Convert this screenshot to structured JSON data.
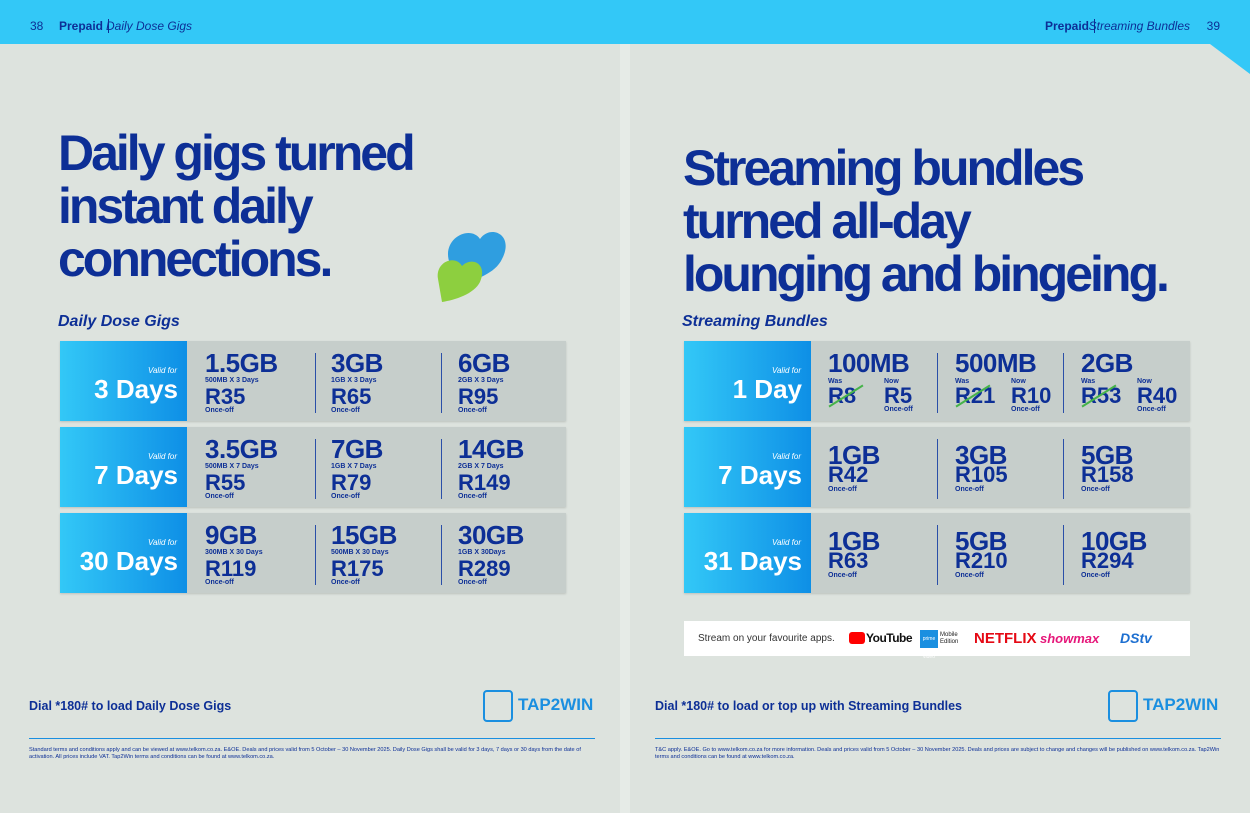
{
  "left_page": {
    "page_number": "38",
    "section": "Prepaid",
    "subsection": "Daily Dose Gigs",
    "headline": [
      "Daily gigs turned",
      "instant daily",
      "connections."
    ],
    "table_title": "Daily Dose Gigs",
    "rows": [
      {
        "valid_label": "Valid for",
        "period": "3 Days",
        "items": [
          {
            "data": "1.5GB",
            "detail": "500MB X 3 Days",
            "price": "R35",
            "note": "Once-off"
          },
          {
            "data": "3GB",
            "detail": "1GB X 3 Days",
            "price": "R65",
            "note": "Once-off"
          },
          {
            "data": "6GB",
            "detail": "2GB X 3 Days",
            "price": "R95",
            "note": "Once-off"
          }
        ]
      },
      {
        "valid_label": "Valid for",
        "period": "7 Days",
        "items": [
          {
            "data": "3.5GB",
            "detail": "500MB X 7 Days",
            "price": "R55",
            "note": "Once-off"
          },
          {
            "data": "7GB",
            "detail": "1GB X 7 Days",
            "price": "R79",
            "note": "Once-off"
          },
          {
            "data": "14GB",
            "detail": "2GB X 7 Days",
            "price": "R149",
            "note": "Once-off"
          }
        ]
      },
      {
        "valid_label": "Valid for",
        "period": "30 Days",
        "items": [
          {
            "data": "9GB",
            "detail": "300MB X 30 Days",
            "price": "R119",
            "note": "Once-off"
          },
          {
            "data": "15GB",
            "detail": "500MB X 30 Days",
            "price": "R175",
            "note": "Once-off"
          },
          {
            "data": "30GB",
            "detail": "1GB X 30Days",
            "price": "R289",
            "note": "Once-off"
          }
        ]
      }
    ],
    "dial": "Dial *180# to load Daily Dose Gigs",
    "logo": "TAP2WIN",
    "terms": "Standard terms and conditions apply and can be viewed at www.telkom.co.za. E&OE. Deals and prices valid from 5 October – 30 November 2025. Daily Dose Gigs shall be valid for 3 days, 7 days or 30 days from the date of activation. All prices include VAT. Tap2Win terms and conditions can be found at www.telkom.co.za."
  },
  "right_page": {
    "page_number": "39",
    "section": "Prepaid",
    "subsection": "Streaming Bundles",
    "headline": [
      "Streaming bundles",
      "turned all-day",
      "lounging and bingeing."
    ],
    "table_title": "Streaming Bundles",
    "rows": [
      {
        "valid_label": "Valid for",
        "period": "1 Day",
        "items": [
          {
            "data": "100MB",
            "was_label": "Was",
            "was_price": "R8",
            "now_label": "Now",
            "price": "R5",
            "note": "Once-off"
          },
          {
            "data": "500MB",
            "was_label": "Was",
            "was_price": "R21",
            "now_label": "Now",
            "price": "R10",
            "note": "Once-off"
          },
          {
            "data": "2GB",
            "was_label": "Was",
            "was_price": "R53",
            "now_label": "Now",
            "price": "R40",
            "note": "Once-off"
          }
        ]
      },
      {
        "valid_label": "Valid for",
        "period": "7 Days",
        "items": [
          {
            "data": "1GB",
            "price": "R42",
            "note": "Once-off"
          },
          {
            "data": "3GB",
            "price": "R105",
            "note": "Once-off"
          },
          {
            "data": "5GB",
            "price": "R158",
            "note": "Once-off"
          }
        ]
      },
      {
        "valid_label": "Valid for",
        "period": "31 Days",
        "items": [
          {
            "data": "1GB",
            "price": "R63",
            "note": "Once-off"
          },
          {
            "data": "5GB",
            "price": "R210",
            "note": "Once-off"
          },
          {
            "data": "10GB",
            "price": "R294",
            "note": "Once-off"
          }
        ]
      }
    ],
    "apps_text": "Stream on your favourite apps.",
    "apps": [
      "YouTube",
      "prime video",
      "Mobile Edition",
      "NETFLIX",
      "showmax",
      "DStv"
    ],
    "dial": "Dial *180# to load or top up with Streaming Bundles",
    "logo": "TAP2WIN",
    "terms": "T&C apply. E&OE. Go to www.telkom.co.za for more information. Deals and prices valid from 5 October – 30 November 2025. Deals and prices are subject to change and changes will be published on www.telkom.co.za. Tap2Win terms and conditions can be found at www.telkom.co.za."
  }
}
